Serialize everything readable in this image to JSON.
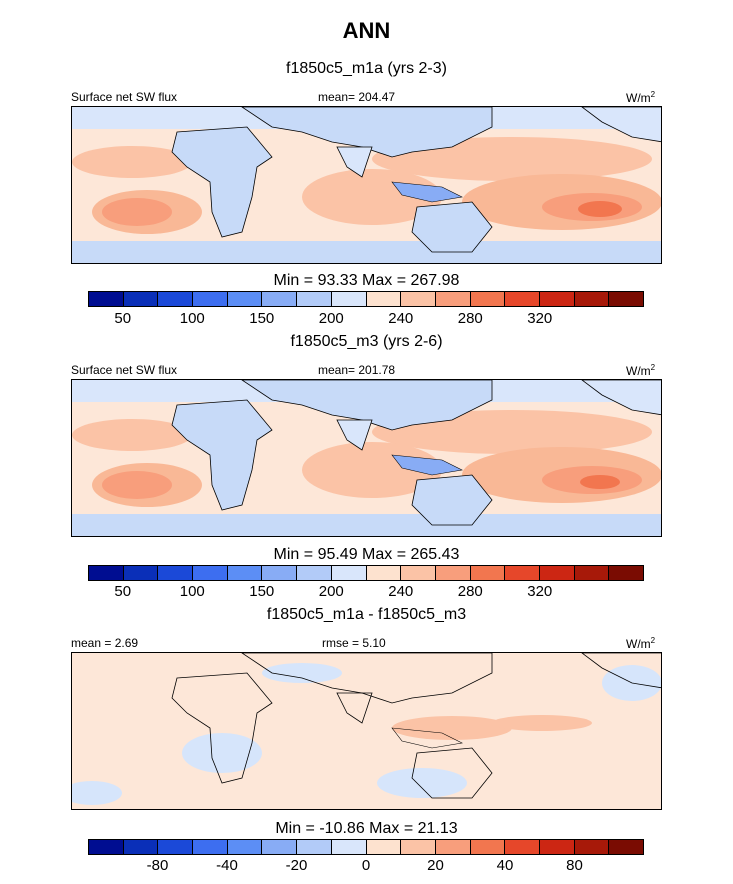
{
  "chart_data": [
    {
      "type": "heatmap",
      "panel": "top",
      "title": "f1850c5_m1a (yrs 2-3)",
      "left_label": "Surface net SW flux",
      "center_label": "mean= 204.47",
      "units": "W/m",
      "units_sup": "2",
      "min_max": "Min =  93.33 Max = 267.98",
      "colorbar_ticks": [
        "50",
        "100",
        "150",
        "200",
        "240",
        "280",
        "320"
      ],
      "colorbar_tick_index": [
        1,
        3,
        5,
        7,
        9,
        11,
        13
      ]
    },
    {
      "type": "heatmap",
      "panel": "middle",
      "title": "f1850c5_m3 (yrs 2-6)",
      "left_label": "Surface net SW flux",
      "center_label": "mean= 201.78",
      "units": "W/m",
      "units_sup": "2",
      "min_max": "Min =  95.49 Max = 265.43",
      "colorbar_ticks": [
        "50",
        "100",
        "150",
        "200",
        "240",
        "280",
        "320"
      ],
      "colorbar_tick_index": [
        1,
        3,
        5,
        7,
        9,
        11,
        13
      ]
    },
    {
      "type": "heatmap",
      "panel": "bottom",
      "title": "f1850c5_m1a - f1850c5_m3",
      "left_label": "mean =   2.69",
      "center_label": "rmse =   5.10",
      "units": "W/m",
      "units_sup": "2",
      "min_max": "Min = -10.86 Max =  21.13",
      "colorbar_ticks": [
        "-80",
        "-40",
        "-20",
        "0",
        "20",
        "40",
        "80"
      ],
      "colorbar_tick_index": [
        2,
        4,
        6,
        8,
        10,
        12,
        14
      ]
    }
  ],
  "page": {
    "title": "ANN"
  },
  "colors": {
    "colorbar": [
      "#000d91",
      "#0a2fb8",
      "#1b49d8",
      "#3d6ef0",
      "#5c8ef5",
      "#88acf5",
      "#b2cbf8",
      "#d9e6fb",
      "#fde2cf",
      "#fbc3a6",
      "#f89e7c",
      "#f2764f",
      "#e6472a",
      "#cc2613",
      "#a71909",
      "#7a0c02"
    ],
    "ocean_base": "#fde7d8",
    "ocean_warm": "#f9b896",
    "ocean_hot": "#f28f6a",
    "land_blue": "#c7daf8",
    "land_blue_dark": "#a9c4f3",
    "diff_base": "#fde7d8",
    "diff_blue": "#d6e5fb"
  }
}
